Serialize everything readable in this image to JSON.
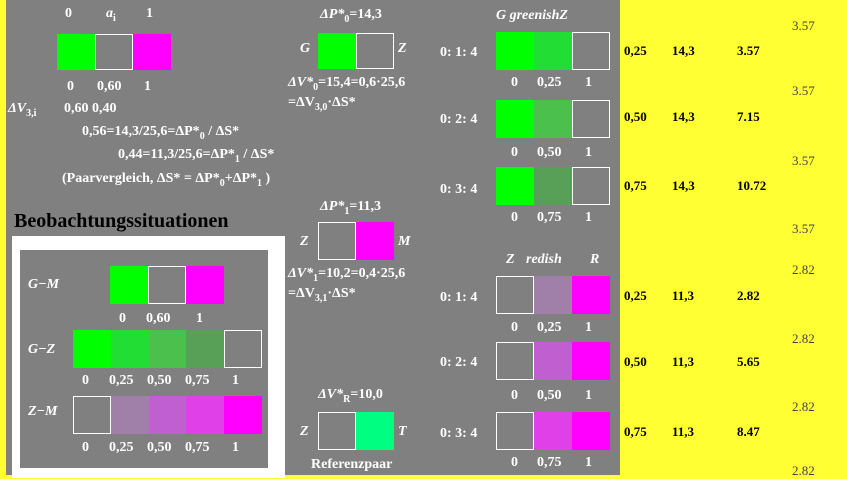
{
  "colors": {
    "background": "#ffff33",
    "gray": "#808080",
    "green": "#00ff00",
    "magenta": "#ff00ff",
    "refgreen": "#00ff80",
    "text": "#ffffff"
  },
  "top": {
    "h0": "0",
    "ha": "a",
    "hasub": "i",
    "h1": "1",
    "scale": [
      "0",
      "0,60",
      "1"
    ],
    "dv": "ΔV",
    "dvsub": "3,i",
    "dvvals": "0,60 0,40",
    "eq1": "0,56=14,3/25,6=ΔP*",
    "eq1sub": "0",
    "eq1end": " / ΔS*",
    "eq2": "0,44=11,3/25,6=ΔP*",
    "eq2sub": "1",
    "eq2end": " / ΔS*",
    "eq3a": "(Paarvergleich, ΔS* = ΔP*",
    "eq3sub0": "0",
    "eq3b": "+ΔP*",
    "eq3sub1": "1",
    "eq3c": " )"
  },
  "situ": {
    "title": "Beobachtungssituationen",
    "gm": "G−M",
    "gm_scale": [
      "0",
      "0,60",
      "1"
    ],
    "gz": "G−Z",
    "gz_scale": [
      "0",
      "0,25",
      "0,50",
      "0,75",
      "1"
    ],
    "zm": "Z−M",
    "zm_scale": [
      "0",
      "0,25",
      "0,50",
      "0,75",
      "1"
    ]
  },
  "mid": {
    "p0a": "ΔP*",
    "p0sub": "0",
    "p0b": "=14,3",
    "g": "G",
    "z": "Z",
    "v0a": "ΔV*",
    "v0sub": "0",
    "v0b": "=15,4=0,6·25,6",
    "v0c": "=ΔV",
    "v0csub": "3,0",
    "v0d": "·ΔS*",
    "p1a": "ΔP*",
    "p1sub": "1",
    "p1b": "=11,3",
    "z2": "Z",
    "m": "M",
    "v1a": "ΔV*",
    "v1sub": "1",
    "v1b": "=10,2=0,4·25,6",
    "v1c": "=ΔV",
    "v1csub": "3,1",
    "v1d": "·ΔS*",
    "pra": "ΔV*",
    "prsub": "R",
    "prb": "=10,0",
    "z3": "Z",
    "t": "T",
    "ref": "Referenzpaar"
  },
  "right": {
    "green_title": "G greenishZ",
    "red_title_z": "Z",
    "red_title_mid": "redish",
    "red_title_r": "R",
    "green_rows": [
      {
        "ratio": "0: 1: 4",
        "scale": [
          "0",
          "0,25",
          "1"
        ],
        "mid": "#22dd33"
      },
      {
        "ratio": "0: 2: 4",
        "scale": [
          "0",
          "0,50",
          "1"
        ],
        "mid": "#4cc04c"
      },
      {
        "ratio": "0: 3: 4",
        "scale": [
          "0",
          "0,75",
          "1"
        ],
        "mid": "#58a058"
      }
    ],
    "red_rows": [
      {
        "ratio": "0: 1: 4",
        "scale": [
          "0",
          "0,25",
          "1"
        ],
        "mid": "#a080a8"
      },
      {
        "ratio": "0: 2: 4",
        "scale": [
          "0",
          "0,50",
          "1"
        ],
        "mid": "#c060d0"
      },
      {
        "ratio": "0: 3: 4",
        "scale": [
          "0",
          "0,75",
          "1"
        ],
        "mid": "#e040e8"
      }
    ]
  },
  "table": {
    "rows": [
      [
        "0,25",
        "14,3",
        "3.57"
      ],
      [
        "0,50",
        "14,3",
        "7.15"
      ],
      [
        "0,75",
        "14,3",
        "10.72"
      ],
      [
        "0,25",
        "11,3",
        "2.82"
      ],
      [
        "0,50",
        "11,3",
        "5.65"
      ],
      [
        "0,75",
        "11,3",
        "8.47"
      ]
    ]
  },
  "side_values": [
    "3.57",
    "3.57",
    "3.57",
    "3.57",
    "2.82",
    "2.82",
    "2.82",
    "2.82"
  ]
}
